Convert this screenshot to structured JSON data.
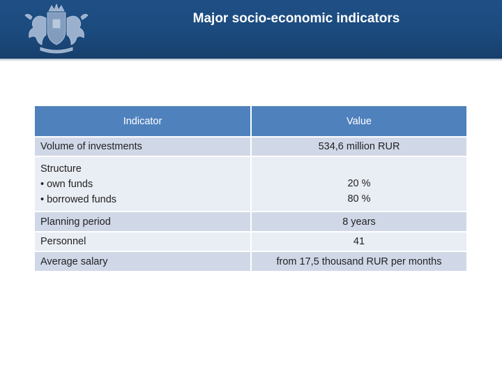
{
  "header": {
    "title": "Major socio-economic indicators"
  },
  "table": {
    "columns": [
      "Indicator",
      "Value"
    ],
    "rows": [
      {
        "indicator": [
          "Volume of investments"
        ],
        "value": [
          "534,6 million RUR"
        ]
      },
      {
        "indicator": [
          "Structure",
          "• own funds",
          "• borrowed funds"
        ],
        "value": [
          "20 %",
          "80 %"
        ]
      },
      {
        "indicator": [
          "Planning period"
        ],
        "value": [
          "8 years"
        ]
      },
      {
        "indicator": [
          "Personnel"
        ],
        "value": [
          "41"
        ]
      },
      {
        "indicator": [
          "Average salary"
        ],
        "value": [
          "from 17,5 thousand RUR per months"
        ]
      }
    ]
  },
  "colors": {
    "header_bg": "#1f4f85",
    "table_header_bg": "#4f81bd",
    "row_odd_bg": "#d0d8e8",
    "row_even_bg": "#e9edf4"
  },
  "icons": {
    "emblem": "coat-of-arms-icon"
  }
}
